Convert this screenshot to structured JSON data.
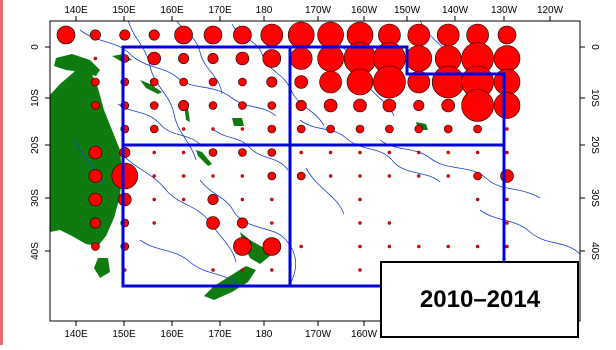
{
  "map": {
    "period_label": "2010–2014",
    "colors": {
      "land": "#0f7a0f",
      "circle_fill": "#ff0000",
      "circle_stroke": "#000000",
      "region_border": "#0000dd",
      "eez_lines": "#1c3fd6",
      "frame": "#000000",
      "left_edge_bar": "#e46b6b"
    },
    "x_ticks": [
      "140E",
      "150E",
      "160E",
      "170E",
      "180",
      "170W",
      "160W",
      "150W",
      "140W",
      "130W",
      "120W"
    ],
    "y_ticks": [
      "0",
      "10S",
      "20S",
      "30S",
      "40S"
    ],
    "symbol": "catch magnitude shown by red circle size per 5°×5° cell",
    "cell_values": [
      [
        5,
        3,
        3,
        3,
        5,
        5,
        5,
        6,
        7,
        7,
        7,
        6,
        6,
        6,
        6,
        5
      ],
      [
        0,
        1,
        2,
        4,
        3,
        3,
        4,
        5,
        6,
        7,
        8,
        8,
        7,
        7,
        8,
        7
      ],
      [
        0,
        2,
        2,
        2,
        2,
        2,
        2,
        3,
        4,
        6,
        7,
        8,
        6,
        8,
        8,
        7
      ],
      [
        0,
        2,
        2,
        2,
        3,
        2,
        2,
        2,
        3,
        4,
        4,
        4,
        3,
        4,
        8,
        7
      ],
      [
        0,
        0,
        2,
        2,
        1,
        1,
        1,
        2,
        2,
        2,
        2,
        2,
        2,
        2,
        2,
        1
      ],
      [
        0,
        4,
        3,
        1,
        1,
        2,
        2,
        2,
        1,
        1,
        1,
        1,
        1,
        1,
        1,
        1
      ],
      [
        0,
        4,
        7,
        1,
        1,
        1,
        1,
        2,
        2,
        1,
        1,
        1,
        1,
        1,
        2,
        4
      ],
      [
        0,
        4,
        4,
        1,
        1,
        3,
        1,
        1,
        0,
        0,
        1,
        0,
        0,
        0,
        1,
        1
      ],
      [
        0,
        3,
        2,
        1,
        0,
        4,
        3,
        1,
        0,
        0,
        1,
        1,
        0,
        0,
        0,
        1
      ],
      [
        0,
        2,
        2,
        0,
        0,
        0,
        5,
        5,
        1,
        0,
        1,
        1,
        1,
        1,
        1,
        1
      ],
      [
        0,
        0,
        1,
        0,
        0,
        1,
        1,
        1,
        0,
        0,
        1,
        0,
        0,
        0,
        0,
        0
      ]
    ]
  }
}
